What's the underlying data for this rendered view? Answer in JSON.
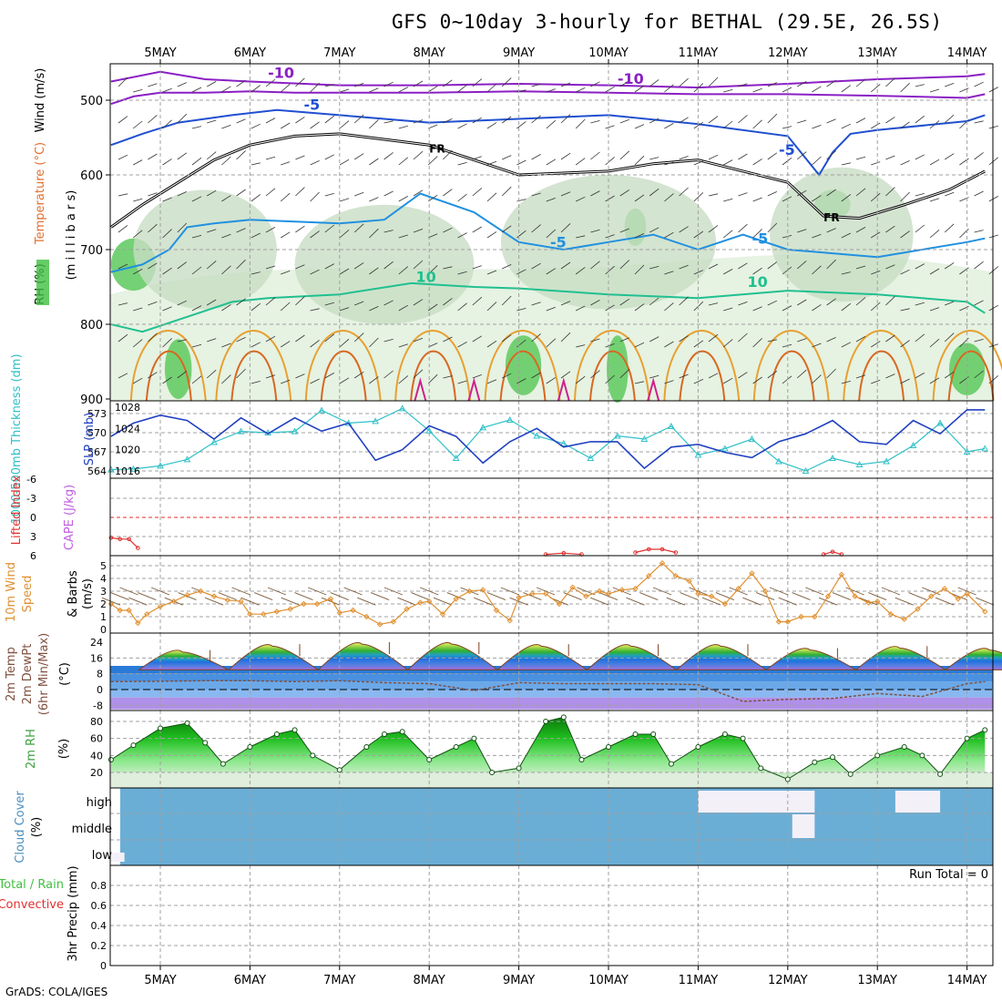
{
  "title": "GFS 0~10day 3-hourly for BETHAL (29.5E, 26.5S)",
  "credit": "GrADS: COLA/IGES",
  "colors": {
    "temperature": "#e07030",
    "wind": "#000000",
    "rh_shade": "#40c040",
    "thickness": "#30c0c8",
    "slp": "#2040c0",
    "lifted_index": "#e03030",
    "cape": "#c060e0",
    "wind10": "#e09030",
    "dewpoint": "#805040",
    "precip_total": "#40c040",
    "convective": "#e03030",
    "cloud": "#6aaed6"
  },
  "chart_data": [
    {
      "type": "heatmap",
      "panel": "upper_air",
      "ylabel_parts": [
        "RH (%)",
        "Temperature (°C)",
        "Wind (m/s)"
      ],
      "ylabel_units": "(m i l l i b a r s)",
      "x_ticks": [
        "5MAY",
        "6MAY",
        "7MAY",
        "8MAY",
        "9MAY",
        "10MAY",
        "11MAY",
        "12MAY",
        "13MAY",
        "14MAY"
      ],
      "y_ticks": [
        "500",
        "600",
        "700",
        "800",
        "900"
      ],
      "ylim": [
        450,
        900
      ],
      "contour_labels": [
        {
          "text": "-10",
          "x": 1.2,
          "p": 470,
          "color": "#8a1fc4"
        },
        {
          "text": "-10",
          "x": 5.1,
          "p": 478,
          "color": "#8a1fc4"
        },
        {
          "text": "-5",
          "x": 1.6,
          "p": 513,
          "color": "#2050d0"
        },
        {
          "text": "-5",
          "x": 6.9,
          "p": 573,
          "color": "#2050d0"
        },
        {
          "text": "FR",
          "x": 3.0,
          "p": 570,
          "color": "#000000"
        },
        {
          "text": "FR",
          "x": 7.4,
          "p": 662,
          "color": "#000000"
        },
        {
          "text": "-5",
          "x": 4.35,
          "p": 697,
          "color": "#2090e0"
        },
        {
          "text": "-5",
          "x": 6.6,
          "p": 692,
          "color": "#2090e0"
        },
        {
          "text": "10",
          "x": 2.85,
          "p": 743,
          "color": "#20c090"
        },
        {
          "text": "10",
          "x": 6.55,
          "p": 750,
          "color": "#20c090"
        }
      ],
      "isolines": [
        {
          "name": "-10",
          "color": "#8a1fc4",
          "x": [
            -0.55,
            0,
            0.5,
            1,
            2,
            3,
            4,
            5,
            6,
            7,
            8,
            9,
            9.2
          ],
          "p": [
            475,
            462,
            472,
            475,
            480,
            480,
            478,
            480,
            483,
            478,
            472,
            468,
            465
          ]
        },
        {
          "name": "-10b",
          "color": "#8a1fc4",
          "x": [
            -0.55,
            -0.3,
            0,
            0.5,
            1,
            1.5,
            2,
            3,
            4,
            5,
            6,
            7,
            8,
            9,
            9.2
          ],
          "p": [
            505,
            495,
            490,
            490,
            488,
            490,
            490,
            490,
            488,
            490,
            492,
            492,
            494,
            497,
            492
          ]
        },
        {
          "name": "-5",
          "color": "#2050d0",
          "x": [
            -0.55,
            -0.2,
            0.2,
            0.8,
            1.3,
            2,
            3,
            4,
            5,
            6,
            7,
            7.35,
            7.5,
            7.7,
            8,
            9,
            9.2
          ],
          "p": [
            560,
            545,
            530,
            520,
            513,
            520,
            530,
            525,
            520,
            532,
            548,
            600,
            570,
            545,
            540,
            528,
            520
          ]
        },
        {
          "name": "FR",
          "color": "#000000",
          "x": [
            -0.55,
            -0.2,
            0.2,
            0.6,
            1,
            1.5,
            2,
            3,
            3.5,
            4,
            5,
            5.5,
            6,
            6.5,
            7,
            7.4,
            7.8,
            8.3,
            8.8,
            9.2
          ],
          "p": [
            670,
            640,
            610,
            580,
            560,
            548,
            545,
            560,
            580,
            600,
            595,
            585,
            580,
            595,
            610,
            655,
            658,
            640,
            620,
            595
          ]
        },
        {
          "name": "-5c",
          "color": "#2090e0",
          "x": [
            -0.55,
            -0.2,
            0.1,
            0.3,
            0.6,
            1,
            2,
            2.5,
            2.9,
            3.5,
            4,
            4.5,
            5,
            5.5,
            6,
            6.5,
            7,
            8,
            9,
            9.2
          ],
          "p": [
            730,
            720,
            700,
            670,
            665,
            660,
            665,
            660,
            625,
            650,
            690,
            700,
            690,
            680,
            700,
            680,
            700,
            710,
            690,
            685
          ]
        },
        {
          "name": "10",
          "color": "#20c090",
          "x": [
            -0.55,
            -0.2,
            0.3,
            0.8,
            1.2,
            2,
            2.8,
            3.5,
            4,
            5,
            6,
            7,
            8,
            9,
            9.2
          ],
          "p": [
            800,
            810,
            790,
            770,
            765,
            760,
            745,
            750,
            752,
            760,
            765,
            755,
            760,
            770,
            785
          ]
        }
      ],
      "warm_domes_x": [
        0.1,
        1.05,
        2.05,
        3.05,
        4.05,
        5.05,
        6.05,
        7.05,
        8.05,
        9.05
      ],
      "rh_patches": [
        {
          "x": -0.3,
          "p": 720,
          "rx": 0.25,
          "rp": 35,
          "level": 3
        },
        {
          "x": 0.2,
          "p": 860,
          "rx": 0.15,
          "rp": 40,
          "level": 3
        },
        {
          "x": 4.05,
          "p": 855,
          "rx": 0.2,
          "rp": 40,
          "level": 3
        },
        {
          "x": 5.1,
          "p": 860,
          "rx": 0.12,
          "rp": 45,
          "level": 3
        },
        {
          "x": 5.3,
          "p": 670,
          "rx": 0.12,
          "rp": 25,
          "level": 3
        },
        {
          "x": 7.5,
          "p": 640,
          "rx": 0.2,
          "rp": 20,
          "level": 3
        },
        {
          "x": 9.0,
          "p": 860,
          "rx": 0.2,
          "rp": 35,
          "level": 3
        },
        {
          "x": 0.5,
          "p": 700,
          "rx": 0.8,
          "rp": 80,
          "level": 1
        },
        {
          "x": 2.5,
          "p": 720,
          "rx": 1.0,
          "rp": 80,
          "level": 1
        },
        {
          "x": 5.0,
          "p": 690,
          "rx": 1.2,
          "rp": 90,
          "level": 1
        },
        {
          "x": 7.6,
          "p": 680,
          "rx": 0.8,
          "rp": 90,
          "level": 1
        }
      ]
    },
    {
      "type": "line",
      "panel": "thickness_slp",
      "ylabel": "1000-500mb Thickness (dm)",
      "ylabel2": "SLP (mb)",
      "x": [
        -0.55,
        -0.3,
        0,
        0.3,
        0.6,
        0.9,
        1.2,
        1.5,
        1.8,
        2.1,
        2.4,
        2.7,
        3.0,
        3.3,
        3.6,
        3.9,
        4.2,
        4.5,
        4.8,
        5.1,
        5.4,
        5.7,
        6.0,
        6.3,
        6.6,
        6.9,
        7.2,
        7.5,
        7.8,
        8.1,
        8.4,
        8.7,
        9.0,
        9.2
      ],
      "y_ticks_left": [
        "573",
        "570",
        "567",
        "564"
      ],
      "y_ticks_right": [
        "1028",
        "1024",
        "1020",
        "1016"
      ],
      "series": [
        {
          "name": "Thickness",
          "color": "#30c0c8",
          "marker": "triangle",
          "values": [
            564.2,
            564.3,
            564.8,
            565.8,
            568.5,
            570.2,
            570.0,
            570.2,
            573.5,
            571.5,
            571.8,
            573.8,
            570.3,
            566.0,
            570.8,
            572.0,
            569.5,
            568.3,
            566.0,
            569.5,
            569.0,
            571.0,
            566.5,
            567.5,
            569.0,
            565.5,
            564.0,
            566.0,
            565.0,
            565.5,
            568.0,
            571.5,
            567.0,
            567.5
          ]
        },
        {
          "name": "SLP",
          "color": "#2040c0",
          "marker": "none",
          "values": [
            1022.5,
            1025,
            1026.5,
            1025.5,
            1022,
            1026,
            1023,
            1026,
            1023.5,
            1025,
            1018,
            1020,
            1024.5,
            1022.5,
            1017.5,
            1021.5,
            1024,
            1020.5,
            1021.5,
            1021.5,
            1016.5,
            1020.5,
            1021,
            1019.5,
            1018.5,
            1021.5,
            1023,
            1025.5,
            1021.5,
            1021,
            1025.5,
            1023,
            1027.5,
            1027.5
          ]
        }
      ],
      "ylim": [
        563,
        575
      ],
      "ylim2": [
        1015,
        1029
      ]
    },
    {
      "type": "line",
      "panel": "stability",
      "ylabel": "Lifted Index",
      "ylabel2": "CAPE (J/kg)",
      "y_ticks": [
        "-6",
        "-3",
        "0",
        "3",
        "6"
      ],
      "ylim": [
        -6,
        6
      ],
      "series": [
        {
          "name": "Lifted Index",
          "color": "#e03030",
          "x": [
            -0.55,
            -0.45,
            -0.35,
            -0.25
          ],
          "values": [
            3.2,
            3.4,
            3.4,
            4.8
          ]
        },
        {
          "name": "Lifted Index b",
          "color": "#e03030",
          "x": [
            4.3,
            4.5,
            4.7
          ],
          "values": [
            5.8,
            5.6,
            5.8
          ]
        },
        {
          "name": "Lifted Index c",
          "color": "#e03030",
          "x": [
            5.3,
            5.45,
            5.6,
            5.75
          ],
          "values": [
            5.5,
            5.0,
            5.0,
            5.5
          ]
        },
        {
          "name": "Lifted Index d",
          "color": "#e03030",
          "x": [
            7.4,
            7.5,
            7.6
          ],
          "values": [
            5.8,
            5.4,
            5.8
          ]
        }
      ]
    },
    {
      "type": "line",
      "panel": "wind10m",
      "ylabel": "10m Wind Speed & Barbs",
      "ylabel_parts": [
        "10m Wind",
        "Speed",
        "& Barbs"
      ],
      "yunit": "(m/s)",
      "y_ticks": [
        "5",
        "4",
        "3",
        "2",
        "1",
        "0"
      ],
      "ylim": [
        0,
        5.5
      ],
      "x": [
        -0.55,
        -0.45,
        -0.35,
        -0.25,
        -0.15,
        0,
        0.15,
        0.3,
        0.45,
        0.6,
        0.75,
        0.9,
        1.0,
        1.15,
        1.3,
        1.45,
        1.6,
        1.75,
        1.9,
        2.0,
        2.15,
        2.3,
        2.45,
        2.6,
        2.75,
        2.9,
        3.0,
        3.15,
        3.3,
        3.45,
        3.6,
        3.75,
        3.9,
        4.0,
        4.15,
        4.3,
        4.45,
        4.6,
        4.75,
        4.9,
        5.0,
        5.15,
        5.3,
        5.45,
        5.6,
        5.75,
        5.9,
        6.0,
        6.15,
        6.3,
        6.45,
        6.6,
        6.75,
        6.9,
        7.0,
        7.15,
        7.3,
        7.45,
        7.6,
        7.75,
        7.9,
        8.0,
        8.15,
        8.3,
        8.45,
        8.6,
        8.75,
        8.9,
        9.0,
        9.2
      ],
      "series": [
        {
          "name": "Speed",
          "color": "#e09030",
          "values": [
            2.0,
            1.5,
            1.5,
            0.5,
            1.2,
            1.8,
            2.2,
            2.7,
            3.0,
            2.6,
            2.3,
            2.2,
            1.2,
            1.2,
            1.4,
            1.6,
            2.0,
            2.0,
            2.4,
            1.3,
            1.5,
            1.0,
            0.4,
            0.6,
            1.6,
            2.1,
            2.2,
            1.2,
            2.4,
            3.0,
            3.1,
            1.5,
            0.7,
            2.5,
            2.8,
            2.8,
            2.0,
            3.3,
            2.6,
            3.0,
            2.8,
            3.1,
            3.2,
            4.2,
            5.2,
            4.2,
            3.8,
            2.8,
            2.6,
            2.0,
            3.2,
            4.4,
            3.0,
            0.6,
            0.6,
            1.0,
            1.0,
            2.6,
            4.3,
            2.6,
            2.1,
            2.2,
            1.2,
            0.8,
            1.6,
            2.6,
            3.2,
            2.4,
            2.8,
            1.4
          ]
        }
      ]
    },
    {
      "type": "area",
      "panel": "temp2m",
      "ylabel_parts": [
        "2m Temp",
        "2m DewPt",
        "(6hr Min/Max)"
      ],
      "yunit": "(°C)",
      "y_ticks": [
        "24",
        "16",
        "8",
        "0",
        "-8"
      ],
      "ylim": [
        -10,
        26
      ],
      "temp_peaks_x": [
        0.3,
        1.3,
        2.3,
        3.3,
        4.3,
        5.3,
        6.3,
        7.3,
        8.3,
        9.3
      ],
      "temp_max": [
        19,
        22,
        23,
        23,
        22,
        22,
        22,
        20,
        21,
        20
      ],
      "temp_min": 8,
      "dewpoint": {
        "name": "Dew Point",
        "x": [
          -0.55,
          0,
          0.5,
          1,
          1.5,
          2,
          2.5,
          3,
          3.5,
          4,
          4.5,
          5,
          5.5,
          6,
          6.5,
          7,
          7.5,
          8,
          8.5,
          9,
          9.2
        ],
        "values": [
          4,
          4.2,
          4.5,
          4.5,
          4,
          4.5,
          3.5,
          3,
          -0.5,
          3.5,
          3,
          3,
          3,
          2.5,
          -6,
          -5,
          -4.5,
          -2,
          -3.5,
          3,
          4
        ]
      }
    },
    {
      "type": "area",
      "panel": "rh2m",
      "ylabel": "2m RH",
      "yunit": "(%)",
      "y_ticks": [
        "80",
        "60",
        "40",
        "20"
      ],
      "ylim": [
        10,
        92
      ],
      "x": [
        -0.55,
        -0.3,
        0,
        0.3,
        0.5,
        0.7,
        1.0,
        1.3,
        1.5,
        1.7,
        2.0,
        2.3,
        2.5,
        2.7,
        3.0,
        3.3,
        3.5,
        3.7,
        4.0,
        4.3,
        4.5,
        4.7,
        5.0,
        5.3,
        5.5,
        5.7,
        6.0,
        6.3,
        6.5,
        6.7,
        7.0,
        7.3,
        7.5,
        7.7,
        8.0,
        8.3,
        8.5,
        8.7,
        9.0,
        9.2
      ],
      "series": [
        {
          "name": "RH",
          "color": "#006000",
          "values": [
            35,
            52,
            72,
            78,
            55,
            30,
            50,
            65,
            70,
            40,
            23,
            50,
            65,
            68,
            35,
            50,
            60,
            20,
            25,
            80,
            85,
            35,
            50,
            65,
            65,
            30,
            50,
            65,
            60,
            25,
            12,
            32,
            38,
            18,
            40,
            50,
            40,
            18,
            60,
            70
          ]
        }
      ]
    },
    {
      "type": "heatmap",
      "panel": "cloud_cover",
      "ylabel": "Cloud Cover",
      "yunit": "(%)",
      "layers": [
        "high",
        "middle",
        "low"
      ],
      "clear_blocks": [
        {
          "layer": "low",
          "x0": -0.55,
          "x1": -0.4
        },
        {
          "layer": "high",
          "x0": 6.0,
          "x1": 7.3
        },
        {
          "layer": "middle",
          "x0": 7.05,
          "x1": 7.3
        },
        {
          "layer": "high",
          "x0": 8.2,
          "x1": 8.7
        }
      ]
    },
    {
      "type": "bar",
      "panel": "precip",
      "ylabel": "3hr Precip (mm)",
      "legend": [
        "Total / Rain",
        "Convective"
      ],
      "run_total": "Run Total = 0",
      "y_ticks": [
        "0.8",
        "0.6",
        "0.4",
        "0.2",
        "0"
      ],
      "ylim": [
        0,
        1.0
      ],
      "values": []
    }
  ]
}
